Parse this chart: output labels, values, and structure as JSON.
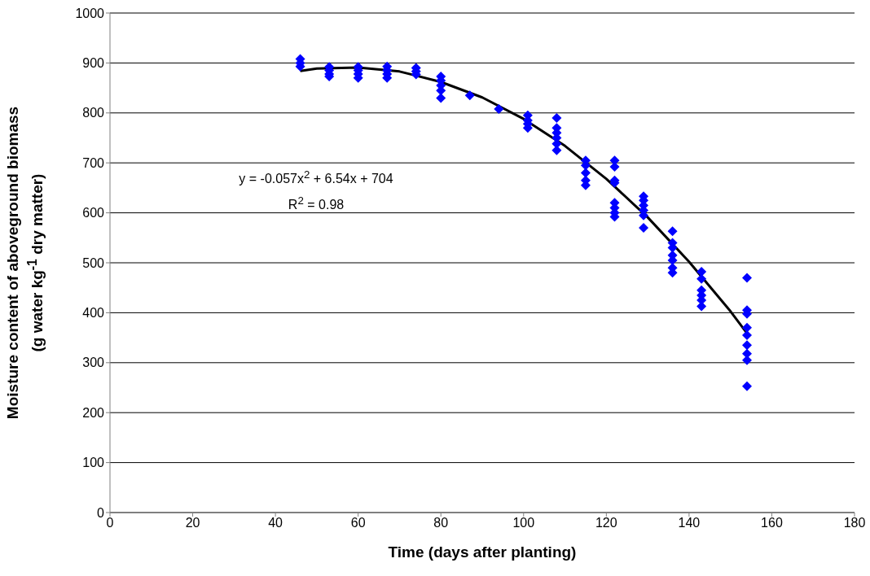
{
  "chart_data": {
    "type": "scatter",
    "xlabel": "Time (days after planting)",
    "ylabel": "Moisture content of aboveground biomass (g water kg$^{-1}$ dry matter)",
    "xlim": [
      0,
      180
    ],
    "xticks": [
      0,
      20,
      40,
      60,
      80,
      100,
      120,
      140,
      160,
      180
    ],
    "ylim": [
      0,
      1000
    ],
    "yticks": [
      0,
      100,
      200,
      300,
      400,
      500,
      600,
      700,
      800,
      900,
      1000
    ],
    "grid": "y",
    "legend": false,
    "marker": "diamond",
    "annotations": [
      "y = -0.057x$^{2}$ + 6.54x + 704",
      "R$^{2}$ = 0.98"
    ],
    "series": [
      {
        "color": "#0000ff",
        "x": [
          46,
          46,
          46,
          53,
          53,
          53,
          53,
          60,
          60,
          60,
          60,
          67,
          67,
          67,
          67,
          74,
          74,
          74,
          80,
          80,
          80,
          80,
          80,
          87,
          94,
          101,
          101,
          101,
          101,
          108,
          108,
          108,
          108,
          108,
          108,
          115,
          115,
          115,
          115,
          115,
          122,
          122,
          122,
          122,
          122,
          122,
          122,
          122,
          129,
          129,
          129,
          129,
          129,
          129,
          136,
          136,
          136,
          136,
          136,
          136,
          136,
          143,
          143,
          143,
          143,
          143,
          143,
          154,
          154,
          154,
          154,
          154,
          154,
          154,
          154,
          154
        ],
        "values": [
          908,
          900,
          893,
          892,
          885,
          878,
          873,
          892,
          885,
          878,
          870,
          893,
          885,
          878,
          870,
          890,
          883,
          877,
          873,
          865,
          855,
          845,
          830,
          835,
          808,
          795,
          785,
          778,
          770,
          790,
          770,
          760,
          750,
          738,
          725,
          705,
          695,
          680,
          665,
          655,
          705,
          692,
          665,
          660,
          620,
          610,
          600,
          592,
          633,
          625,
          615,
          605,
          595,
          570,
          563,
          540,
          530,
          515,
          505,
          490,
          480,
          482,
          468,
          445,
          435,
          425,
          413,
          470,
          405,
          398,
          370,
          355,
          335,
          318,
          305,
          253
        ]
      },
      {
        "type": "line",
        "color": "#000000",
        "line_style": "solid",
        "marker": "none",
        "x": [
          46,
          50,
          60,
          70,
          80,
          90,
          100,
          110,
          120,
          130,
          140,
          150,
          154
        ],
        "values": [
          884,
          889,
          891,
          883,
          862,
          831,
          788,
          734,
          668,
          591,
          502,
          403,
          359
        ]
      }
    ]
  }
}
